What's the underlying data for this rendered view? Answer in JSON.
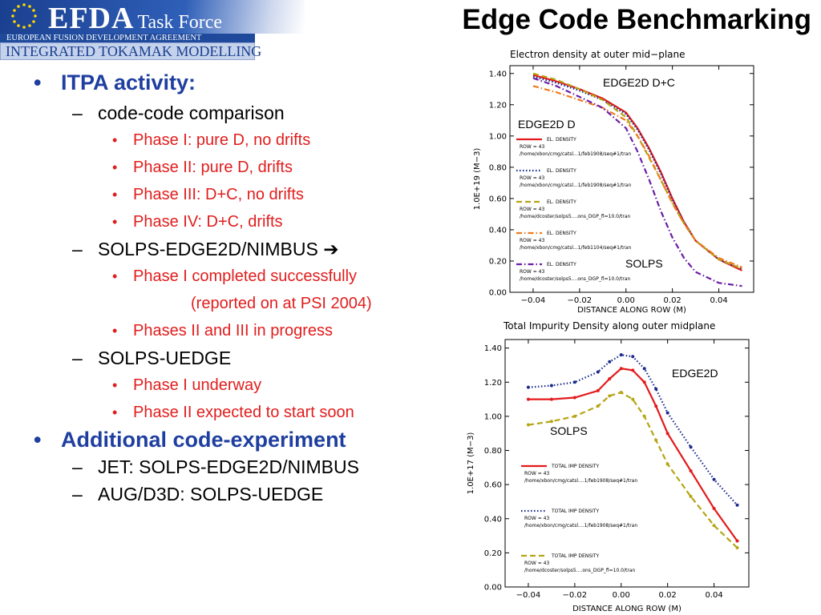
{
  "header": {
    "logo_main": "EFDA",
    "logo_sub": "Task Force",
    "org_line": "EUROPEAN FUSION DEVELOPMENT AGREEMENT",
    "program_line": "INTEGRATED TOKAMAK MODELLING",
    "slide_title": "Edge Code Benchmarking"
  },
  "outline": {
    "bullet1": "ITPA activity:",
    "sub1": "code-code comparison",
    "phase1": "Phase I: pure D, no drifts",
    "phase2": "Phase II: pure D, drifts",
    "phase3": "Phase III: D+C, no drifts",
    "phase4": "Phase IV: D+C, drifts",
    "sub2": "SOLPS-EDGE2D/NIMBUS",
    "sub2_arrow": "➔",
    "edge_item1": "Phase I completed successfully",
    "edge_item1_cont": "(reported on at PSI 2004)",
    "edge_item2": "Phases II and III in progress",
    "sub3": "SOLPS-UEDGE",
    "uedge_item1": "Phase I underway",
    "uedge_item2": "Phase II expected to start soon",
    "bullet2": "Additional code-experiment",
    "sub4": "JET: SOLPS-EDGE2D/NIMBUS",
    "sub5": "AUG/D3D: SOLPS-UEDGE"
  },
  "chart_data": [
    {
      "type": "line",
      "title": "Electron density at outer mid−plane",
      "xlabel": "DISTANCE ALONG ROW (M)",
      "ylabel": "1.0E+19 (M−3)",
      "xlim": [
        -0.05,
        0.055
      ],
      "ylim": [
        0.0,
        1.45
      ],
      "xticks": [
        "−0.04",
        "−0.02",
        "0.00",
        "0.02",
        "0.04"
      ],
      "yticks": [
        "0.00",
        "0.20",
        "0.40",
        "0.60",
        "0.80",
        "1.00",
        "1.20",
        "1.40"
      ],
      "annotations": [
        "EDGE2D D+C",
        "EDGE2D D",
        "SOLPS"
      ],
      "legend": [
        {
          "title": "EL. DENSITY",
          "row": "ROW = 43",
          "path": "/home/xbon/cmg/catsl...1/feb1908/seq#1/tran",
          "color": "#e31a1c",
          "style": "solid"
        },
        {
          "title": "EL. DENSITY",
          "row": "ROW = 43",
          "path": "/home/xbon/cmg/catsl...1/feb1908/seq#1/tran",
          "color": "#1a2a8c",
          "style": "dotted"
        },
        {
          "title": "EL. DENSITY",
          "row": "ROW = 43",
          "path": "/home/dcoster/solps5....ons_DGP_fl=10.0/tran",
          "color": "#b5a514",
          "style": "dashed"
        },
        {
          "title": "EL. DENSITY",
          "row": "ROW = 43",
          "path": "/home/xbon/cmg/catsl...1/feb1104/seq#1/tran",
          "color": "#f07a1e",
          "style": "dashdot"
        },
        {
          "title": "EL. DENSITY",
          "row": "ROW = 43",
          "path": "/home/dcoster/solps5....ons_DGP_fl=10.0/tran",
          "color": "#6a1ea8",
          "style": "dashdot"
        }
      ],
      "x": [
        -0.04,
        -0.03,
        -0.02,
        -0.01,
        0.0,
        0.005,
        0.01,
        0.015,
        0.02,
        0.025,
        0.03,
        0.04,
        0.05
      ],
      "series": [
        {
          "values": [
            1.39,
            1.35,
            1.3,
            1.24,
            1.15,
            1.05,
            0.92,
            0.77,
            0.6,
            0.45,
            0.33,
            0.21,
            0.14
          ],
          "color": "#e31a1c",
          "style": "solid"
        },
        {
          "values": [
            1.38,
            1.34,
            1.29,
            1.23,
            1.14,
            1.04,
            0.91,
            0.76,
            0.59,
            0.45,
            0.33,
            0.21,
            0.15
          ],
          "color": "#1a2a8c",
          "style": "dotted"
        },
        {
          "values": [
            1.4,
            1.36,
            1.3,
            1.23,
            1.12,
            1.0,
            0.86,
            0.72,
            0.57,
            0.44,
            0.33,
            0.21,
            0.15
          ],
          "color": "#b5a514",
          "style": "dashed"
        },
        {
          "values": [
            1.32,
            1.28,
            1.23,
            1.18,
            1.1,
            1.0,
            0.87,
            0.72,
            0.57,
            0.44,
            0.33,
            0.22,
            0.16
          ],
          "color": "#f07a1e",
          "style": "dashdot"
        },
        {
          "values": [
            1.37,
            1.32,
            1.25,
            1.18,
            1.05,
            0.9,
            0.72,
            0.52,
            0.35,
            0.22,
            0.13,
            0.06,
            0.04
          ],
          "color": "#6a1ea8",
          "style": "dashdot"
        }
      ]
    },
    {
      "type": "line",
      "title": "Total Impurity Density along outer midplane",
      "xlabel": "DISTANCE ALONG ROW (M)",
      "ylabel": "1.0E+17 (M−3)",
      "xlim": [
        -0.05,
        0.055
      ],
      "ylim": [
        0.0,
        1.45
      ],
      "xticks": [
        "−0.04",
        "−0.02",
        "0.00",
        "0.02",
        "0.04"
      ],
      "yticks": [
        "0.00",
        "0.20",
        "0.40",
        "0.60",
        "0.80",
        "1.00",
        "1.20",
        "1.40"
      ],
      "annotations": [
        "EDGE2D",
        "SOLPS"
      ],
      "legend": [
        {
          "title": "TOTAL IMP DENSITY",
          "row": "ROW = 43",
          "path": "/home/xbon/cmg/catsl....1/feb1908/seq#1/tran",
          "color": "#e31a1c",
          "style": "solid"
        },
        {
          "title": "TOTAL IMP DENSITY",
          "row": "ROW = 43",
          "path": "/home/xbon/cmg/catsl....1/feb1908/seq#1/tran",
          "color": "#1a2a8c",
          "style": "dotted"
        },
        {
          "title": "TOTAL IMP DENSITY",
          "row": "ROW = 43",
          "path": "/home/dcoster/solps5....ons_DGP_fl=10.0/tran",
          "color": "#b5a514",
          "style": "dashed"
        }
      ],
      "x": [
        -0.04,
        -0.03,
        -0.02,
        -0.01,
        -0.005,
        0.0,
        0.005,
        0.01,
        0.015,
        0.02,
        0.03,
        0.04,
        0.05
      ],
      "series": [
        {
          "values": [
            1.1,
            1.1,
            1.11,
            1.15,
            1.22,
            1.28,
            1.27,
            1.2,
            1.06,
            0.9,
            0.68,
            0.46,
            0.27
          ],
          "color": "#e31a1c",
          "style": "solid"
        },
        {
          "values": [
            1.17,
            1.18,
            1.2,
            1.26,
            1.32,
            1.36,
            1.35,
            1.28,
            1.16,
            1.02,
            0.82,
            0.63,
            0.48
          ],
          "color": "#1a2a8c",
          "style": "dotted"
        },
        {
          "values": [
            0.95,
            0.97,
            1.0,
            1.06,
            1.12,
            1.14,
            1.1,
            1.0,
            0.86,
            0.72,
            0.53,
            0.36,
            0.23
          ],
          "color": "#b5a514",
          "style": "dashed"
        }
      ]
    }
  ]
}
